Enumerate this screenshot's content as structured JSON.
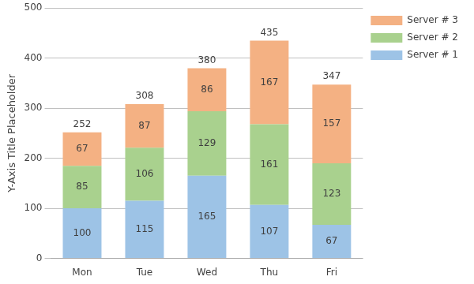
{
  "chart_data": {
    "type": "bar",
    "stacked": true,
    "data_labels": true,
    "grid": true,
    "legend": "right",
    "ylabel": "Y-Axis Title Placeholder",
    "categories": [
      "Mon",
      "Tue",
      "Wed",
      "Thu",
      "Fri"
    ],
    "series": [
      {
        "name": "Server # 1",
        "color": "#9DC3E6",
        "values": [
          100,
          115,
          165,
          107,
          67
        ]
      },
      {
        "name": "Server # 2",
        "color": "#A9D18E",
        "values": [
          85,
          106,
          129,
          161,
          123
        ]
      },
      {
        "name": "Server # 3",
        "color": "#F4B183",
        "values": [
          67,
          87,
          86,
          167,
          157
        ]
      }
    ],
    "totals": [
      252,
      308,
      380,
      435,
      347
    ],
    "ylim": [
      0,
      500
    ],
    "yticks": [
      0,
      100,
      200,
      300,
      400,
      500
    ]
  }
}
